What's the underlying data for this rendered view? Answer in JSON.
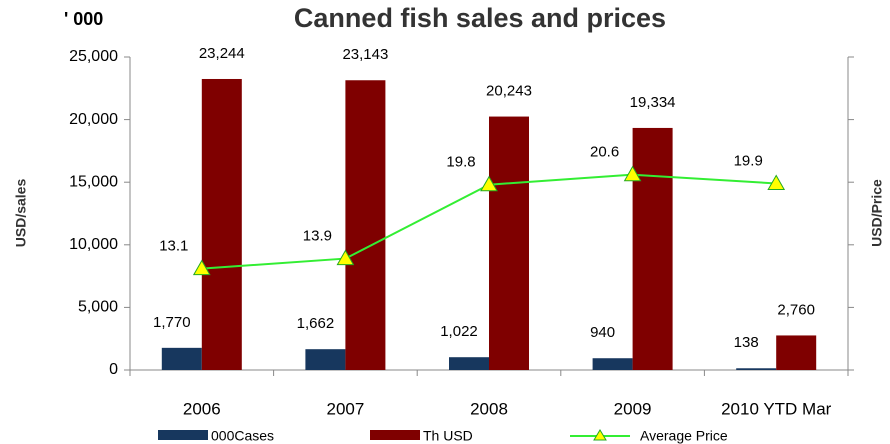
{
  "chart_data": {
    "type": "bar",
    "title": "Canned fish sales and prices",
    "unit_note": "' 000",
    "y_label": "USD/sales",
    "y2_label": "USD/Price",
    "categories": [
      "2006",
      "2007",
      "2008",
      "2009",
      "2010 YTD  Mar"
    ],
    "series": [
      {
        "name": "000Cases",
        "color": "#17375e",
        "values": [
          1770,
          1662,
          1022,
          940,
          138
        ],
        "value_labels": [
          "1,770",
          "1,662",
          "1,022",
          "940",
          "138"
        ]
      },
      {
        "name": "Th USD",
        "color": "#7f0000",
        "values": [
          23244,
          23143,
          20243,
          19334,
          2760
        ],
        "value_labels": [
          "23,244",
          "23,143",
          "20,243",
          "19,334",
          "2,760"
        ]
      },
      {
        "name": "Average Price",
        "type": "line",
        "axis": "y2",
        "color": "#33ee33",
        "marker_color": "#ffff00",
        "values": [
          13.1,
          13.9,
          19.8,
          20.6,
          19.9
        ]
      }
    ],
    "ylim": [
      0,
      25000
    ],
    "yticks": [
      {
        "value": 0,
        "label": "0"
      },
      {
        "value": 5000,
        "label": "5,000"
      },
      {
        "value": 10000,
        "label": "10,000"
      },
      {
        "value": 15000,
        "label": "15,000"
      },
      {
        "value": 20000,
        "label": "20,000"
      },
      {
        "value": 25000,
        "label": "25,000"
      }
    ],
    "y2lim": [
      5,
      30
    ],
    "y2ticks": [
      5,
      10,
      15,
      20,
      25,
      30
    ],
    "legend": "bottom"
  }
}
